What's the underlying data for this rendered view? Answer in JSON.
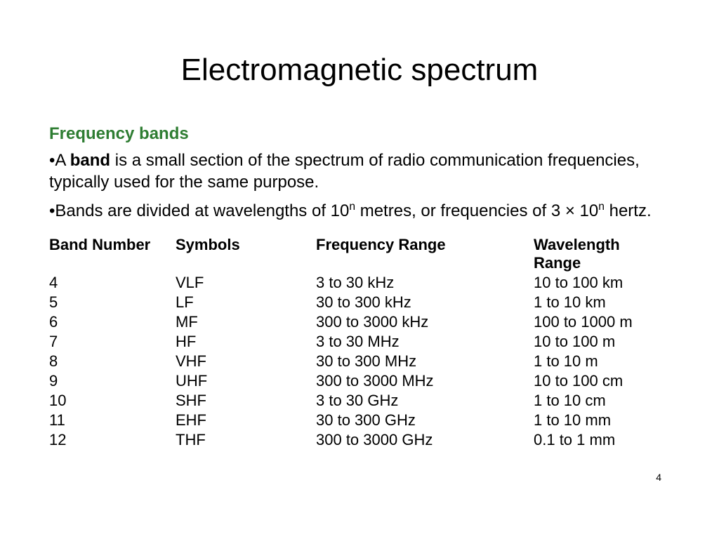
{
  "title": "Electromagnetic spectrum",
  "subtitle": "Frequency bands",
  "bullets": {
    "b1_prefix": "•A ",
    "b1_bold": "band",
    "b1_rest": " is a small section of the spectrum of radio communication frequencies, typically used for the same purpose.",
    "b2_prefix": "•Bands are divided at wavelengths of 10",
    "b2_sup1": "n",
    "b2_mid": " metres, or frequencies of 3 × 10",
    "b2_sup2": "n",
    "b2_end": " hertz."
  },
  "table": {
    "columns": [
      "Band Number",
      "Symbols",
      "Frequency Range",
      "Wavelength Range"
    ],
    "rows": [
      [
        "4",
        "VLF",
        "3 to 30 kHz",
        "10 to 100 km"
      ],
      [
        "5",
        "LF",
        "30 to 300 kHz",
        "1 to 10 km"
      ],
      [
        "6",
        "MF",
        "300 to 3000 kHz",
        "100 to 1000 m"
      ],
      [
        "7",
        "HF",
        "3 to 30 MHz",
        "10 to 100 m"
      ],
      [
        "8",
        "VHF",
        "30 to 300 MHz",
        "1 to 10 m"
      ],
      [
        "9",
        "UHF",
        "300 to 3000 MHz",
        "10 to 100 cm"
      ],
      [
        "10",
        "SHF",
        "3 to 30 GHz",
        "1 to 10 cm"
      ],
      [
        "11",
        "EHF",
        "30 to 300 GHz",
        "1 to 10 mm"
      ],
      [
        "12",
        "THF",
        "300 to 3000  GHz",
        "0.1 to 1 mm"
      ]
    ]
  },
  "page_number": "4",
  "colors": {
    "background": "#ffffff",
    "text": "#000000",
    "subtitle": "#2e7d32"
  },
  "typography": {
    "title_fontsize": 44,
    "subtitle_fontsize": 24,
    "body_fontsize": 24,
    "table_fontsize": 22,
    "page_number_fontsize": 14,
    "font_family": "Arial"
  }
}
